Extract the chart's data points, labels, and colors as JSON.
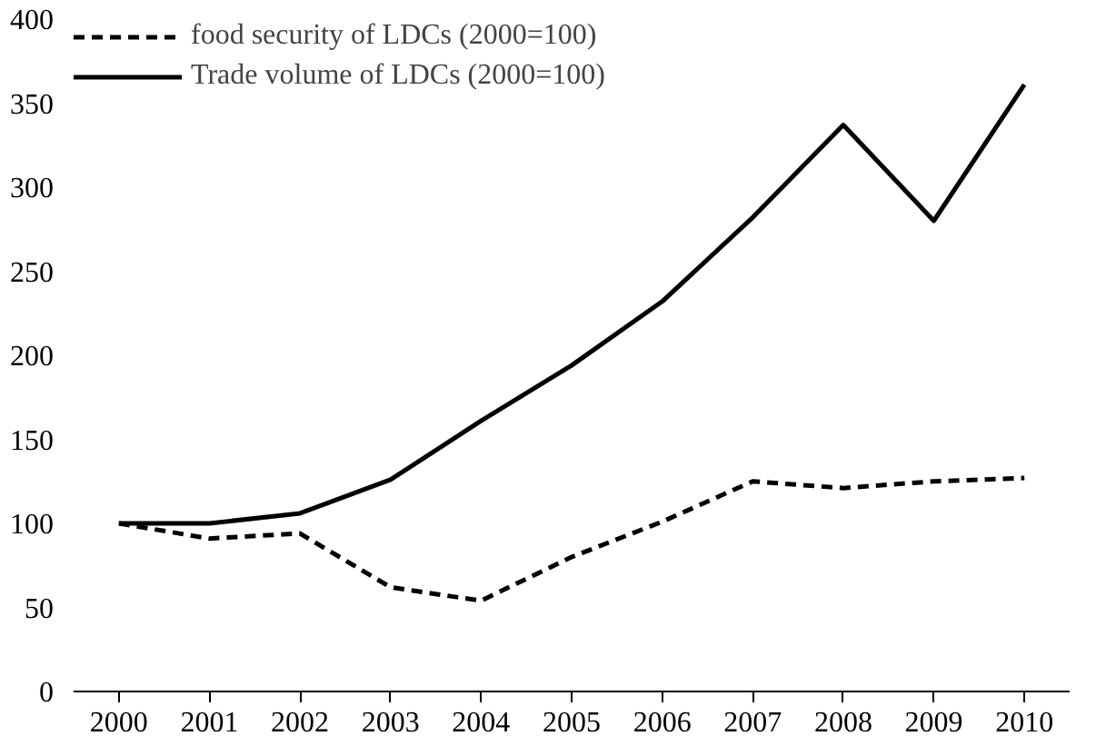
{
  "chart_data": {
    "type": "line",
    "categories": [
      "2000",
      "2001",
      "2002",
      "2003",
      "2004",
      "2005",
      "2006",
      "2007",
      "2008",
      "2009",
      "2010"
    ],
    "series": [
      {
        "name": "food security of LDCs (2000=100)",
        "color": "#000000",
        "line_style": "dashed",
        "values": [
          100,
          91,
          94,
          62,
          54,
          80,
          101,
          125,
          121,
          125,
          127
        ]
      },
      {
        "name": "Trade volume of LDCs (2000=100)",
        "color": "#000000",
        "line_style": "solid",
        "values": [
          100,
          100,
          106,
          126,
          161,
          194,
          232,
          282,
          337,
          280,
          361
        ]
      }
    ],
    "ylim": [
      0,
      400
    ],
    "yticks": [
      0,
      50,
      100,
      150,
      200,
      250,
      300,
      350,
      400
    ],
    "grid": false,
    "legend": "top left"
  }
}
